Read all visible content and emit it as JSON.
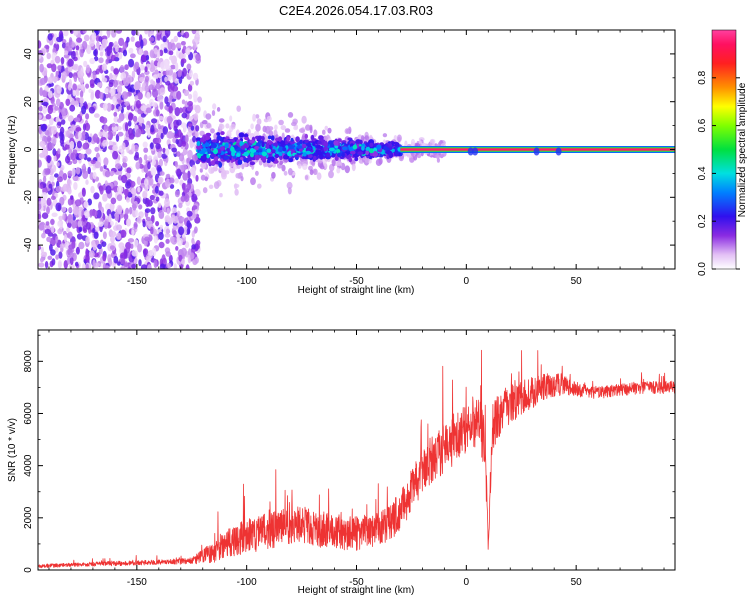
{
  "title": "C2E4.2026.054.17.03.R03",
  "chart_data": [
    {
      "type": "heatmap",
      "panel": "spectrogram",
      "xlabel": "Height of straight line (km)",
      "ylabel": "Frequency (Hz)",
      "xlim": [
        -195,
        95
      ],
      "ylim": [
        -50,
        50
      ],
      "xticks": [
        -150,
        -100,
        -50,
        0,
        50
      ],
      "yticks": [
        -40,
        -20,
        0,
        20,
        40
      ],
      "colorbar": {
        "label": "Normalized spectral amplitude",
        "range": [
          0,
          1
        ],
        "ticks": [
          0.0,
          0.2,
          0.4,
          0.6,
          0.8
        ],
        "colormap": "rainbow (white-purple-blue-cyan-green-yellow-red-magenta)"
      },
      "regions": [
        {
          "x_range": [
            -195,
            -122
          ],
          "description": "broadband noise spread over full frequency range, low amplitude (0.05-0.25)"
        },
        {
          "x_range": [
            -122,
            -30
          ],
          "freq_spread_hz": [
            -10,
            10
          ],
          "amplitude": [
            0.2,
            0.45
          ]
        },
        {
          "x_range": [
            -30,
            95
          ],
          "freq_hz": 0,
          "amplitude": [
            0.95,
            1.0
          ],
          "description": "narrow carrier line at 0 Hz"
        }
      ]
    },
    {
      "type": "line",
      "panel": "snr",
      "xlabel": "Height of straight line (km)",
      "ylabel": "SNR (10 * v/v)",
      "xlim": [
        -195,
        95
      ],
      "ylim": [
        0,
        9200
      ],
      "xticks": [
        -150,
        -100,
        -50,
        0,
        50
      ],
      "yticks": [
        0,
        2000,
        4000,
        6000,
        8000
      ],
      "series": [
        {
          "name": "SNR",
          "color": "#ee3333",
          "x": [
            -195,
            -180,
            -160,
            -140,
            -125,
            -120,
            -115,
            -110,
            -100,
            -90,
            -80,
            -75,
            -70,
            -60,
            -55,
            -50,
            -45,
            -40,
            -35,
            -30,
            -25,
            -20,
            -15,
            -10,
            -5,
            0,
            5,
            8,
            9,
            10,
            11,
            12,
            15,
            20,
            25,
            30,
            35,
            40,
            45,
            50,
            60,
            70,
            80,
            95
          ],
          "y": [
            150,
            200,
            250,
            300,
            350,
            500,
            700,
            1000,
            1300,
            1500,
            1700,
            1800,
            1600,
            1500,
            1400,
            1400,
            1450,
            1600,
            1800,
            2300,
            3000,
            3800,
            4300,
            4700,
            5000,
            5500,
            5800,
            5000,
            3500,
            1000,
            3500,
            5500,
            6000,
            6300,
            6600,
            6800,
            7000,
            7100,
            7100,
            6900,
            6800,
            6900,
            7000,
            7000
          ],
          "noise_amplitude": [
            120,
            120,
            150,
            150,
            200,
            500,
            700,
            900,
            1100,
            1200,
            1200,
            1200,
            1200,
            1100,
            1100,
            1100,
            1000,
            1100,
            1200,
            1300,
            1400,
            1500,
            1600,
            1600,
            1600,
            1700,
            1700,
            1700,
            1200,
            600,
            1200,
            1500,
            1500,
            1300,
            1100,
            1000,
            900,
            800,
            600,
            450,
            400,
            400,
            400,
            400
          ]
        }
      ]
    }
  ]
}
